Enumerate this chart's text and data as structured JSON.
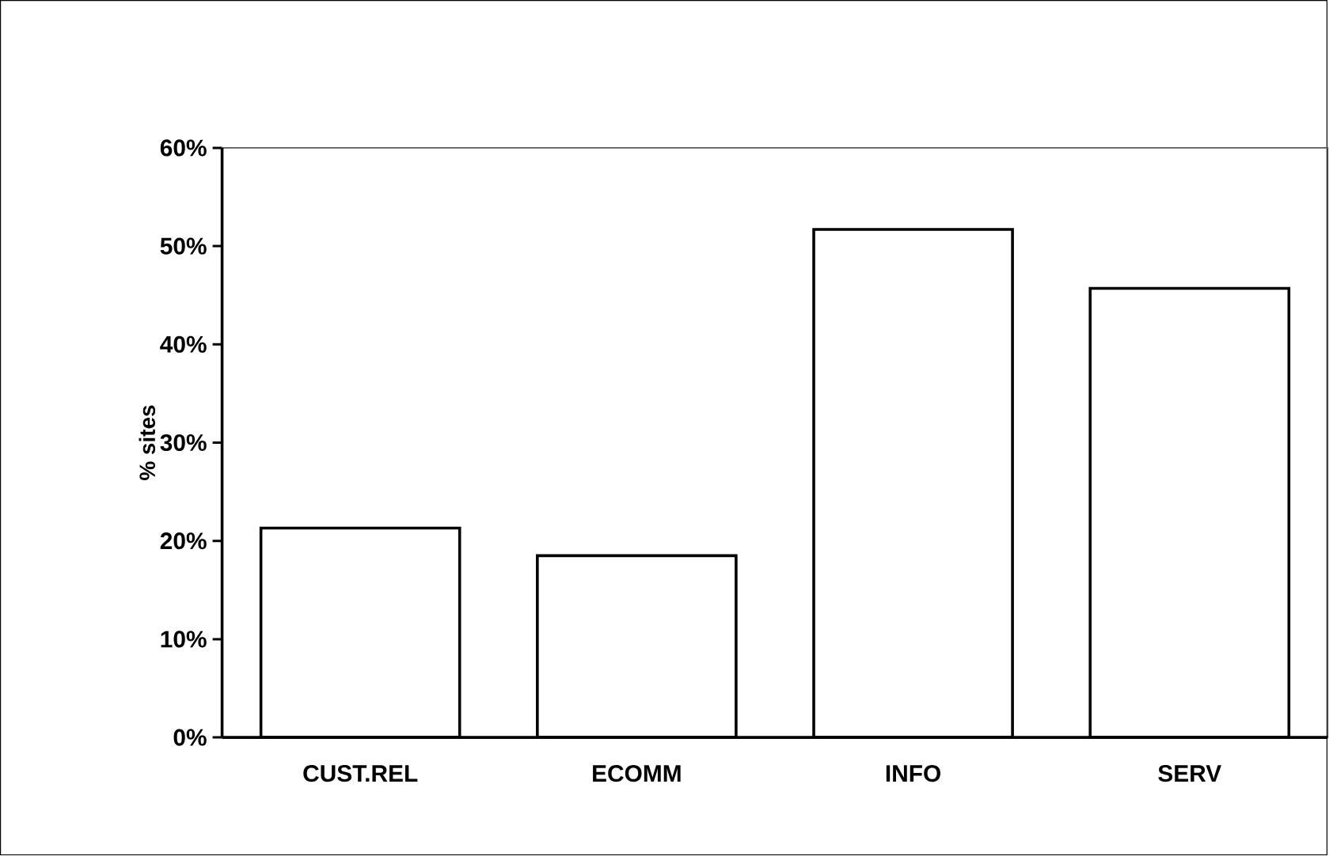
{
  "chart_data": {
    "type": "bar",
    "ylabel": "% sites",
    "categories": [
      "CUST.REL",
      "ECOMM",
      "INFO",
      "SERV"
    ],
    "values": [
      21.3,
      18.5,
      51.7,
      45.7
    ],
    "color": "#ffffff",
    "ylim": [
      0,
      60
    ],
    "yticks": [
      {
        "value": 0,
        "label": "0%"
      },
      {
        "value": 10,
        "label": "10%"
      },
      {
        "value": 20,
        "label": "20%"
      },
      {
        "value": 30,
        "label": "30%"
      },
      {
        "value": 40,
        "label": "40%"
      },
      {
        "value": 50,
        "label": "50%"
      },
      {
        "value": 60,
        "label": "60%"
      }
    ],
    "grid": false
  }
}
